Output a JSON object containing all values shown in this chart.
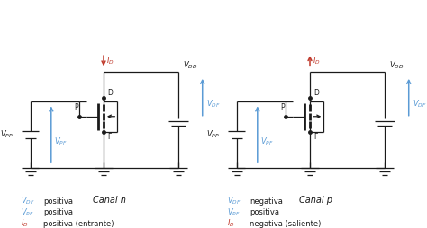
{
  "bg_color": "#ffffff",
  "black": "#1a1a1a",
  "blue": "#5b9bd5",
  "red": "#c0392b",
  "canal_n_label": "Canal n",
  "canal_p_label": "Canal p",
  "left_legend": [
    {
      "color": "#5b9bd5",
      "sym": "V_{DF}",
      "text": "positiva",
      "is_current": false
    },
    {
      "color": "#5b9bd5",
      "sym": "V_{PF}",
      "text": "positiva",
      "is_current": false
    },
    {
      "color": "#c0392b",
      "sym": "I_D",
      "text": "positiva (entrante)",
      "is_current": true
    }
  ],
  "right_legend": [
    {
      "color": "#5b9bd5",
      "sym": "V_{DF}",
      "text": "negativa",
      "is_current": false
    },
    {
      "color": "#5b9bd5",
      "sym": "V_{PF}",
      "text": "positiva",
      "is_current": false
    },
    {
      "color": "#c0392b",
      "sym": "I_D",
      "text": "negativa (saliente)",
      "is_current": true
    }
  ]
}
